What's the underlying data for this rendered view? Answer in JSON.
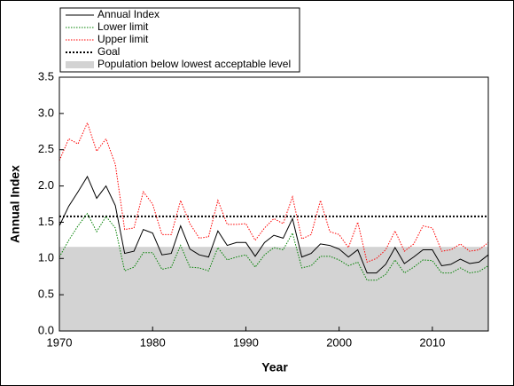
{
  "chart_data": {
    "type": "line",
    "x_label": "Year",
    "y_label": "Annual Index",
    "x": [
      1970,
      1971,
      1972,
      1973,
      1974,
      1975,
      1976,
      1977,
      1978,
      1979,
      1980,
      1981,
      1982,
      1983,
      1984,
      1985,
      1986,
      1987,
      1988,
      1989,
      1990,
      1991,
      1992,
      1993,
      1994,
      1995,
      1996,
      1997,
      1998,
      1999,
      2000,
      2001,
      2002,
      2003,
      2004,
      2005,
      2006,
      2007,
      2008,
      2009,
      2010,
      2011,
      2012,
      2013,
      2014,
      2015,
      2016
    ],
    "series": [
      {
        "name": "Annual Index",
        "color": "#000000",
        "style": "solid",
        "values": [
          1.45,
          1.72,
          1.92,
          2.13,
          1.83,
          2.0,
          1.73,
          1.07,
          1.1,
          1.4,
          1.35,
          1.05,
          1.07,
          1.45,
          1.13,
          1.05,
          1.02,
          1.38,
          1.18,
          1.22,
          1.22,
          1.03,
          1.22,
          1.32,
          1.28,
          1.55,
          1.02,
          1.07,
          1.2,
          1.18,
          1.13,
          1.02,
          1.12,
          0.8,
          0.8,
          0.92,
          1.15,
          0.93,
          1.02,
          1.12,
          1.12,
          0.9,
          0.92,
          0.99,
          0.93,
          0.95,
          1.05
        ]
      },
      {
        "name": "Lower limit",
        "color": "#008000",
        "style": "dotted",
        "values": [
          1.02,
          1.25,
          1.45,
          1.62,
          1.37,
          1.58,
          1.42,
          0.83,
          0.88,
          1.08,
          1.08,
          0.85,
          0.88,
          1.18,
          0.88,
          0.87,
          0.83,
          1.15,
          0.98,
          1.02,
          1.05,
          0.88,
          1.05,
          1.15,
          1.12,
          1.35,
          0.87,
          0.9,
          1.03,
          1.03,
          0.98,
          0.9,
          0.95,
          0.7,
          0.7,
          0.78,
          0.98,
          0.8,
          0.88,
          0.98,
          0.97,
          0.8,
          0.8,
          0.87,
          0.8,
          0.82,
          0.9
        ]
      },
      {
        "name": "Upper limit",
        "color": "#ff0000",
        "style": "dotted",
        "values": [
          2.35,
          2.65,
          2.58,
          2.87,
          2.48,
          2.65,
          2.3,
          1.4,
          1.42,
          1.92,
          1.75,
          1.33,
          1.33,
          1.8,
          1.48,
          1.28,
          1.3,
          1.8,
          1.47,
          1.47,
          1.48,
          1.25,
          1.42,
          1.55,
          1.48,
          1.85,
          1.27,
          1.33,
          1.8,
          1.37,
          1.33,
          1.15,
          1.5,
          0.95,
          1.0,
          1.12,
          1.38,
          1.1,
          1.2,
          1.45,
          1.42,
          1.1,
          1.12,
          1.2,
          1.1,
          1.12,
          1.22
        ]
      }
    ],
    "goal": {
      "name": "Goal",
      "value": 1.58,
      "color": "#000000"
    },
    "shaded": {
      "name": "Population below lowest acceptable level",
      "value": 1.16,
      "color": "#d3d3d3"
    },
    "xlim": [
      1970,
      2016
    ],
    "xticks": [
      1970,
      1980,
      1990,
      2000,
      2010
    ],
    "ylim": [
      0,
      3.5
    ],
    "yticks": [
      {
        "value": 0,
        "label": "0.0"
      },
      {
        "value": 0.5,
        "label": "0.5"
      },
      {
        "value": 1,
        "label": "1.0"
      },
      {
        "value": 1.5,
        "label": "1.5"
      },
      {
        "value": 2,
        "label": "2.0"
      },
      {
        "value": 2.5,
        "label": "2.5"
      },
      {
        "value": 3,
        "label": "3.0"
      },
      {
        "value": 3.5,
        "label": "3.5"
      }
    ],
    "legend": "top-left"
  }
}
